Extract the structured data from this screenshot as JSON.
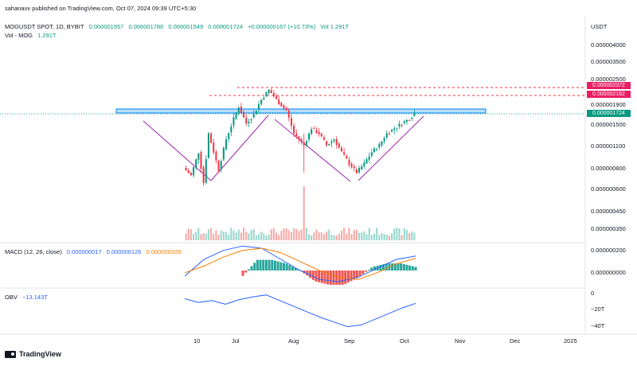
{
  "publish_line": "sahanavv published on TradingView.com, Oct 07, 2024 09:39 UTC+5:30",
  "symbol": "MOGUSDT SPOT, 1D, BYBIT",
  "ohlc": {
    "open": "0.000001557",
    "high": "0.000001786",
    "low": "0.000001549",
    "close": "0.000001724",
    "change": "+0.000000167 (+10.73%)",
    "volume": "Vol 1.291T"
  },
  "volume_label": "Vol - MOG",
  "volume_value": "1.291T",
  "currency": "USDT",
  "price_axis": [
    "0.000004000",
    "0.000003500",
    "0.000002500",
    "0.000001900",
    "0.000001500",
    "0.000001100",
    "0.000000800",
    "0.000000600",
    "0.000000450",
    "0.000000350"
  ],
  "price_tags": [
    {
      "value": "0.000002372",
      "color": "#e91e63"
    },
    {
      "value": "0.000002162",
      "color": "#e91e63"
    },
    {
      "value": "0.000001724",
      "color": "#089981"
    }
  ],
  "macd_label": "MACD (12, 26, close)",
  "macd_values": [
    "0.000000017",
    "0.000000126",
    "0.000000109"
  ],
  "macd_axis": [
    "0.000000200",
    "0.000000000"
  ],
  "obv_label": "OBV",
  "obv_value": "−13.143T",
  "obv_axis": [
    "0",
    "−20T",
    "−40T"
  ],
  "time_axis": [
    "10",
    "Jul",
    "Aug",
    "Sep",
    "Oct",
    "Nov",
    "Dec",
    "2025"
  ],
  "footer_brand": "TradingView",
  "colors": {
    "up": "#089981",
    "down": "#f23645",
    "macd": "#2962ff",
    "signal": "#f57c00",
    "obv": "#2962ff",
    "resistance": "#2196f3",
    "pattern": "#9c27b0"
  },
  "chart_data": {
    "type": "candlestick",
    "title": "MOGUSDT SPOT, 1D, BYBIT",
    "ylabel": "USDT",
    "yscale": "log",
    "period_days": [
      0,
      120
    ],
    "x_ticks": [
      {
        "day": 3,
        "label": "10"
      },
      {
        "day": 22,
        "label": "Jul"
      },
      {
        "day": 53,
        "label": "Aug"
      },
      {
        "day": 84,
        "label": "Sep"
      },
      {
        "day": 114,
        "label": "Oct"
      }
    ],
    "resistance_level": 1.8e-06,
    "horizontal_lines": [
      2.372e-06,
      2.162e-06
    ],
    "pattern": "double bottom with neckline at resistance",
    "price_path": [
      [
        0,
        8e-07
      ],
      [
        3,
        7.2e-07
      ],
      [
        6,
        1e-06
      ],
      [
        8,
        6.5e-07
      ],
      [
        10,
        1.3e-06
      ],
      [
        14,
        7.8e-07
      ],
      [
        17,
        1.2e-06
      ],
      [
        20,
        1.6e-06
      ],
      [
        22,
        1.9e-06
      ],
      [
        25,
        1.5e-06
      ],
      [
        28,
        1.7e-06
      ],
      [
        31,
        2.1e-06
      ],
      [
        34,
        2.4e-06
      ],
      [
        36,
        2.2e-06
      ],
      [
        38,
        2e-06
      ],
      [
        41,
        1.8e-06
      ],
      [
        44,
        1.3e-06
      ],
      [
        46,
        1.2e-06
      ],
      [
        48,
        1.1e-06
      ],
      [
        51,
        1.4e-06
      ],
      [
        54,
        1.3e-06
      ],
      [
        57,
        1.1e-06
      ],
      [
        60,
        1.2e-06
      ],
      [
        63,
        1e-06
      ],
      [
        66,
        8.5e-07
      ],
      [
        69,
        7.5e-07
      ],
      [
        72,
        8.5e-07
      ],
      [
        75,
        1e-06
      ],
      [
        78,
        1.1e-06
      ],
      [
        81,
        1.3e-06
      ],
      [
        84,
        1.4e-06
      ],
      [
        87,
        1.5e-06
      ],
      [
        90,
        1.6e-06
      ],
      [
        92,
        1.72e-06
      ]
    ],
    "macd_series": [
      {
        "name": "MACD",
        "values": [
          -5e-08,
          1e-07,
          1.8e-07,
          2.2e-07,
          2e-07,
          1e-07,
          0.0,
          -8e-08,
          -1e-07,
          -6e-08,
          2e-08,
          1e-07,
          1.3e-07
        ]
      },
      {
        "name": "Signal",
        "values": [
          -2e-08,
          4e-08,
          1.2e-07,
          1.8e-07,
          2e-07,
          1.6e-07,
          8e-08,
          0.0,
          -6e-08,
          -8e-08,
          -2e-08,
          6e-08,
          1.1e-07
        ]
      }
    ],
    "obv_series": [
      -8,
      -12,
      -10,
      -14,
      -9,
      -6,
      -4,
      -10,
      -16,
      -22,
      -28,
      -33,
      -38,
      -36,
      -30,
      -24,
      -18,
      -13
    ]
  }
}
